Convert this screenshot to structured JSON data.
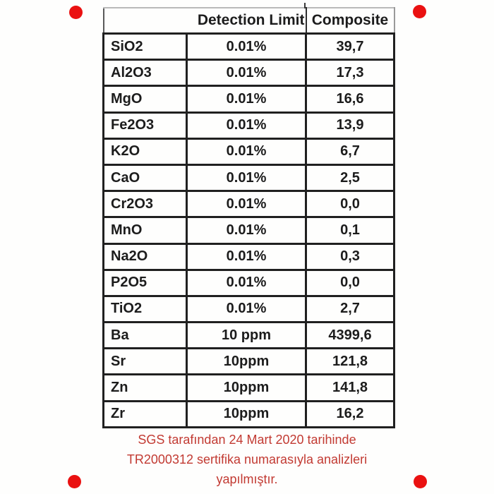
{
  "colors": {
    "marker_red": "#ea1111",
    "caption_red": "#c23a32",
    "table_border": "#202020",
    "table_text": "#1c1c1c",
    "background": "#fefefd"
  },
  "table": {
    "header": {
      "detection_limit_label": "Detection Limit",
      "composite_label": "Composite"
    },
    "rows": [
      {
        "element": "SiO2",
        "limit": "0.01%",
        "value": "39,7"
      },
      {
        "element": "Al2O3",
        "limit": "0.01%",
        "value": "17,3"
      },
      {
        "element": "MgO",
        "limit": "0.01%",
        "value": "16,6"
      },
      {
        "element": "Fe2O3",
        "limit": "0.01%",
        "value": "13,9"
      },
      {
        "element": "K2O",
        "limit": "0.01%",
        "value": "6,7"
      },
      {
        "element": "CaO",
        "limit": "0.01%",
        "value": "2,5"
      },
      {
        "element": "Cr2O3",
        "limit": "0.01%",
        "value": "0,0"
      },
      {
        "element": "MnO",
        "limit": "0.01%",
        "value": "0,1"
      },
      {
        "element": "Na2O",
        "limit": "0.01%",
        "value": "0,3"
      },
      {
        "element": "P2O5",
        "limit": "0.01%",
        "value": "0,0"
      },
      {
        "element": "TiO2",
        "limit": "0.01%",
        "value": "2,7"
      },
      {
        "element": "Ba",
        "limit": "10 ppm",
        "value": "4399,6"
      },
      {
        "element": "Sr",
        "limit": "10ppm",
        "value": "121,8"
      },
      {
        "element": "Zn",
        "limit": "10ppm",
        "value": "141,8"
      },
      {
        "element": "Zr",
        "limit": "10ppm",
        "value": "16,2"
      }
    ]
  },
  "caption": {
    "lines": [
      "SGS tarafından 24 Mart 2020 tarihinde",
      "TR2000312 sertifika numarasıyla analizleri",
      "yapılmıştır."
    ]
  }
}
